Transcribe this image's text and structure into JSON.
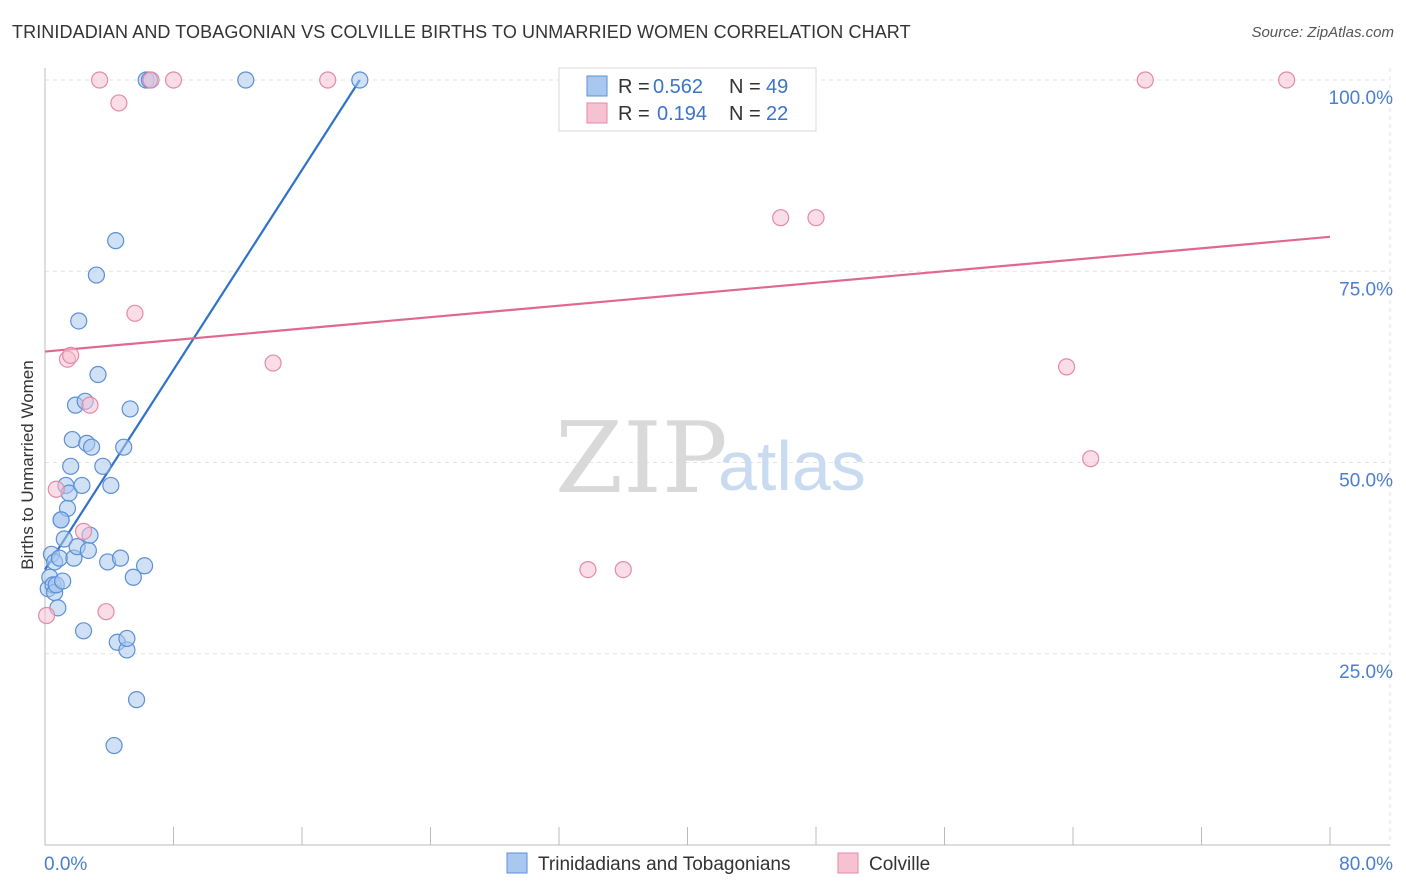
{
  "title": "TRINIDADIAN AND TOBAGONIAN VS COLVILLE BIRTHS TO UNMARRIED WOMEN CORRELATION CHART",
  "source": "Source: ZipAtlas.com",
  "watermark": {
    "zip": "ZIP",
    "atlas": "atlas"
  },
  "legend": {
    "r_label": "R =",
    "n_label": "N =",
    "rows": [
      {
        "r": "0.562",
        "n": "49"
      },
      {
        "r": "0.194",
        "n": "22"
      }
    ]
  },
  "colors": {
    "blue_fill": "#a9c8ef",
    "blue_stroke": "#5b8fd6",
    "blue_line": "#2f72c8",
    "pink_fill": "#f6c1d1",
    "pink_stroke": "#e58aa7",
    "pink_line": "#e06890",
    "tick_label": "#4a7fcf",
    "grid": "#e3e3e3"
  },
  "chart_data": {
    "type": "scatter",
    "title": "TRINIDADIAN AND TOBAGONIAN VS COLVILLE BIRTHS TO UNMARRIED WOMEN CORRELATION CHART",
    "xlabel": "",
    "ylabel": "Births to Unmarried Women",
    "xlim": [
      0,
      80
    ],
    "ylim": [
      0,
      102
    ],
    "x_tick_labels": [
      "0.0%",
      "80.0%"
    ],
    "y_tick_labels": [
      "25.0%",
      "50.0%",
      "75.0%",
      "100.0%"
    ],
    "y_ticks": [
      25,
      50,
      75,
      100
    ],
    "grid": true,
    "legend_position": "top-center",
    "series": [
      {
        "name": "Trinidadians and Tobagonians",
        "color": "#a9c8ef",
        "points": [
          [
            0.2,
            33.5
          ],
          [
            0.3,
            35
          ],
          [
            0.4,
            38
          ],
          [
            0.5,
            34
          ],
          [
            0.6,
            37
          ],
          [
            0.6,
            33
          ],
          [
            0.7,
            34
          ],
          [
            0.8,
            31
          ],
          [
            0.9,
            37.5
          ],
          [
            1.0,
            42.5
          ],
          [
            1.1,
            34.5
          ],
          [
            1.2,
            40
          ],
          [
            1.3,
            47
          ],
          [
            1.4,
            44
          ],
          [
            1.5,
            46
          ],
          [
            1.6,
            49.5
          ],
          [
            1.7,
            53
          ],
          [
            1.8,
            37.5
          ],
          [
            1.9,
            57.5
          ],
          [
            2.0,
            39
          ],
          [
            2.1,
            68.5
          ],
          [
            2.3,
            47
          ],
          [
            2.4,
            28
          ],
          [
            2.5,
            58
          ],
          [
            2.6,
            52.5
          ],
          [
            2.7,
            38.5
          ],
          [
            2.8,
            40.5
          ],
          [
            2.9,
            52
          ],
          [
            3.2,
            74.5
          ],
          [
            3.3,
            61.5
          ],
          [
            3.6,
            49.5
          ],
          [
            3.9,
            37
          ],
          [
            4.1,
            47
          ],
          [
            4.3,
            13
          ],
          [
            4.4,
            79
          ],
          [
            4.5,
            26.5
          ],
          [
            4.7,
            37.5
          ],
          [
            4.9,
            52
          ],
          [
            5.1,
            25.5
          ],
          [
            5.1,
            27
          ],
          [
            5.3,
            57
          ],
          [
            5.5,
            35
          ],
          [
            5.7,
            19
          ],
          [
            6.2,
            36.5
          ],
          [
            6.3,
            100
          ],
          [
            6.5,
            100
          ],
          [
            12.5,
            100
          ],
          [
            19.6,
            100
          ],
          [
            1.0,
            42.5
          ]
        ]
      },
      {
        "name": "Colville",
        "color": "#f6c1d1",
        "points": [
          [
            0.1,
            30
          ],
          [
            0.7,
            46.5
          ],
          [
            1.4,
            63.5
          ],
          [
            1.6,
            64
          ],
          [
            2.4,
            41
          ],
          [
            2.8,
            57.5
          ],
          [
            3.8,
            30.5
          ],
          [
            3.4,
            100
          ],
          [
            4.6,
            97
          ],
          [
            5.6,
            69.5
          ],
          [
            6.6,
            100
          ],
          [
            8.0,
            100
          ],
          [
            14.2,
            63
          ],
          [
            17.6,
            100
          ],
          [
            33.8,
            36
          ],
          [
            36.0,
            36
          ],
          [
            45.8,
            82
          ],
          [
            48.0,
            82
          ],
          [
            63.6,
            62.5
          ],
          [
            65.1,
            50.5
          ],
          [
            68.5,
            100
          ],
          [
            77.3,
            100
          ]
        ]
      }
    ],
    "trend_lines": [
      {
        "name": "Trinidadians and Tobagonians",
        "x": [
          0,
          19.6
        ],
        "y": [
          36,
          100
        ]
      },
      {
        "name": "Colville",
        "x": [
          0,
          80
        ],
        "y": [
          64.5,
          79.5
        ]
      }
    ]
  }
}
